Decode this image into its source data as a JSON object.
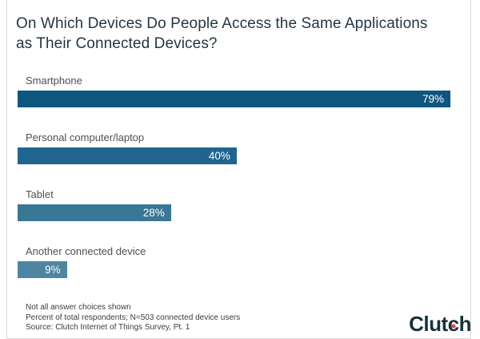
{
  "title": "On Which Devices Do People Access the Same Applications as Their Connected Devices?",
  "title_lines": [
    "On Which Devices Do People Access the Same Applications",
    "as Their Connected Devices?"
  ],
  "chart_data": {
    "type": "bar",
    "orientation": "horizontal",
    "title": "On Which Devices Do People Access the Same Applications as Their Connected Devices?",
    "categories": [
      "Smartphone",
      "Personal computer/laptop",
      "Tablet",
      "Another connected device"
    ],
    "values": [
      79,
      40,
      28,
      9
    ],
    "value_labels": [
      "79%",
      "40%",
      "28%",
      "9%"
    ],
    "bar_colors": [
      "#0f567f",
      "#206590",
      "#3a7695",
      "#4d85a2"
    ],
    "value_label_color": "#ffffff",
    "xlim": [
      0,
      79
    ],
    "grid": false,
    "legend": false
  },
  "footnotes": {
    "line1": "Not all answer choices shown",
    "line2": "Percent of total respondents; N=503 connected device users",
    "line3": "Source: Clutch Internet of Things Survey, Pt. 1"
  },
  "branding": {
    "logo_text": "Clutch",
    "logo_part1": "Clut",
    "logo_part2": "c",
    "logo_part3": "h",
    "logo_color": "#17313d",
    "logo_dot_color": "#ef3c2a"
  }
}
